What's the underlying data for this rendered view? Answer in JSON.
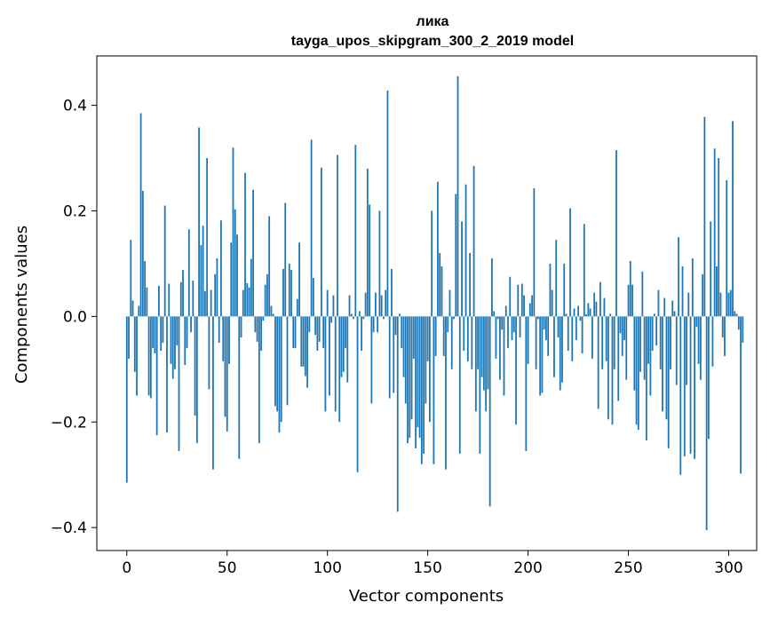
{
  "chart_data": {
    "type": "bar",
    "title": "лика",
    "subtitle": "tayga_upos_skipgram_300_2_2019 model",
    "xlabel": "Vector components",
    "ylabel": "Components values",
    "xlim": [
      -14.95,
      313.95
    ],
    "ylim": [
      -0.4435,
      0.4935
    ],
    "xticks": [
      0,
      50,
      100,
      150,
      200,
      250,
      300
    ],
    "yticks": [
      -0.4,
      -0.2,
      0.0,
      0.2,
      0.4
    ],
    "ytick_labels": [
      "−0.4",
      "−0.2",
      "0.0",
      "0.2",
      "0.4"
    ],
    "bar_color": "#1f77b4",
    "values": [
      -0.315,
      -0.08,
      0.145,
      0.03,
      -0.105,
      -0.15,
      0.02,
      0.385,
      0.238,
      0.105,
      0.055,
      -0.15,
      -0.155,
      -0.06,
      -0.07,
      -0.225,
      0.058,
      -0.065,
      -0.05,
      0.21,
      -0.22,
      0.062,
      -0.09,
      -0.118,
      -0.1,
      -0.055,
      -0.255,
      0.065,
      0.088,
      -0.092,
      -0.06,
      0.165,
      -0.03,
      0.068,
      -0.188,
      -0.24,
      0.358,
      0.135,
      0.172,
      0.048,
      0.3,
      -0.138,
      0.05,
      -0.29,
      0.08,
      0.11,
      -0.05,
      0.182,
      -0.085,
      -0.19,
      -0.218,
      -0.09,
      0.14,
      0.32,
      0.203,
      0.155,
      -0.27,
      -0.04,
      0.05,
      0.272,
      0.063,
      0.055,
      0.109,
      0.24,
      -0.03,
      -0.048,
      -0.24,
      -0.065,
      -0.008,
      0.06,
      0.08,
      0.19,
      0.02,
      0.005,
      -0.17,
      -0.18,
      -0.22,
      -0.2,
      0.09,
      0.215,
      -0.168,
      0.1,
      0.088,
      -0.06,
      -0.06,
      0.033,
      0.14,
      -0.095,
      -0.095,
      -0.113,
      -0.135,
      -0.03,
      0.335,
      0.073,
      -0.035,
      -0.065,
      -0.048,
      0.282,
      -0.06,
      -0.18,
      0.05,
      -0.15,
      -0.012,
      0.04,
      -0.18,
      0.306,
      -0.2,
      -0.115,
      -0.105,
      -0.06,
      -0.125,
      0.04,
      0.005,
      -0.005,
      0.325,
      -0.295,
      0.01,
      -0.065,
      -0.005,
      0.045,
      0.28,
      0.212,
      -0.165,
      -0.03,
      0.045,
      -0.03,
      0.2,
      0.04,
      -0.005,
      0.05,
      0.428,
      -0.155,
      0.09,
      -0.145,
      -0.035,
      -0.37,
      0.005,
      -0.06,
      -0.115,
      -0.165,
      -0.24,
      -0.23,
      -0.195,
      -0.08,
      -0.25,
      -0.21,
      -0.23,
      -0.28,
      -0.26,
      -0.165,
      -0.085,
      -0.2,
      0.2,
      -0.28,
      -0.075,
      0.255,
      0.12,
      0.095,
      -0.075,
      -0.29,
      -0.03,
      0.05,
      -0.1,
      -0.005,
      0.232,
      0.455,
      -0.26,
      0.18,
      -0.065,
      0.25,
      -0.085,
      0.12,
      -0.1,
      0.285,
      -0.18,
      -0.1,
      -0.26,
      -0.115,
      -0.14,
      -0.18,
      -0.138,
      -0.36,
      0.11,
      0.01,
      -0.08,
      -0.005,
      -0.12,
      -0.025,
      -0.15,
      0.02,
      -0.06,
      0.075,
      -0.045,
      -0.03,
      -0.205,
      0.06,
      -0.04,
      0.062,
      0.04,
      -0.255,
      -0.09,
      0.025,
      0.04,
      0.243,
      -0.1,
      -0.005,
      -0.15,
      -0.145,
      -0.025,
      -0.045,
      -0.075,
      0.1,
      0.05,
      -0.115,
      0.145,
      -0.04,
      -0.14,
      -0.125,
      0.1,
      0.005,
      -0.065,
      0.205,
      -0.085,
      0.015,
      -0.045,
      0.02,
      -0.008,
      -0.07,
      0.175,
      0.004,
      0.025,
      0.015,
      -0.08,
      0.045,
      0.028,
      -0.175,
      0.065,
      -0.1,
      0.035,
      -0.085,
      -0.195,
      0.005,
      -0.205,
      -0.1,
      0.315,
      -0.16,
      -0.032,
      -0.075,
      -0.045,
      -0.12,
      0.06,
      0.105,
      0.06,
      -0.14,
      -0.205,
      -0.215,
      -0.105,
      0.085,
      -0.12,
      -0.235,
      -0.09,
      -0.15,
      -0.065,
      0.005,
      -0.055,
      0.05,
      -0.1,
      -0.18,
      0.035,
      -0.195,
      -0.25,
      -0.1,
      0.03,
      0.01,
      -0.13,
      0.15,
      -0.3,
      0.095,
      -0.265,
      -0.13,
      0.045,
      -0.26,
      0.11,
      -0.27,
      -0.02,
      -0.09,
      -0.12,
      0.08,
      0.378,
      -0.405,
      -0.232,
      0.18,
      -0.095,
      0.318,
      0.095,
      0.3,
      0.045,
      -0.04,
      -0.075,
      0.258,
      0.045,
      0.05,
      0.37,
      0.01,
      0.005,
      -0.025,
      -0.298,
      -0.05
    ]
  }
}
